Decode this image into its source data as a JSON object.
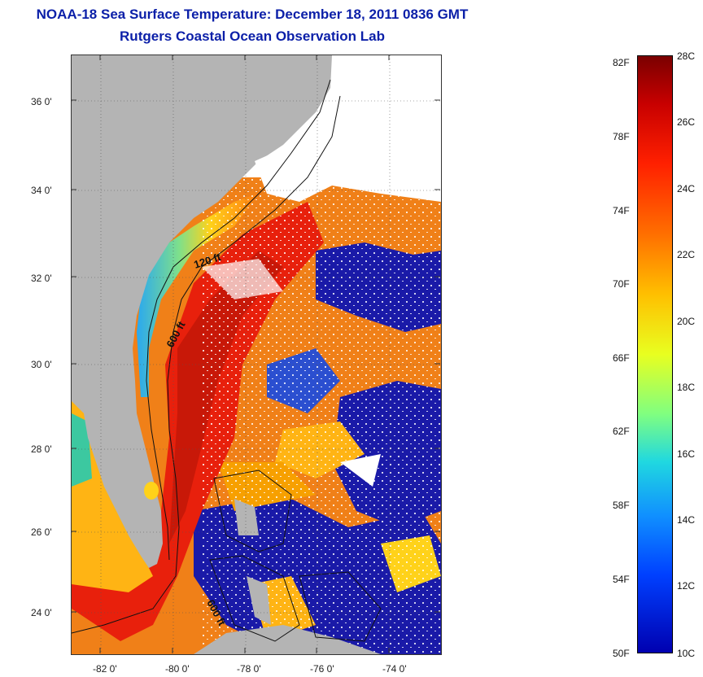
{
  "header": {
    "title": "NOAA-18 Sea Surface Temperature:  December 18, 2011 0836 GMT",
    "subtitle": "Rutgers Coastal Ocean Observation Lab"
  },
  "map": {
    "lat_labels": [
      "36 0'",
      "34 0'",
      "32 0'",
      "30 0'",
      "28 0'",
      "26 0'",
      "24 0'"
    ],
    "lon_labels": [
      "-82 0'",
      "-80 0'",
      "-78 0'",
      "-76 0'",
      "-74 0'"
    ],
    "isobath_labels": [
      "120 ft",
      "600 ft",
      "600 ft"
    ],
    "colors": {
      "land": "#b4b4b4",
      "no_data": "#ffffff",
      "warm": "#e8200c",
      "cold": "#1a1aa8"
    }
  },
  "colorbar": {
    "fahrenheit_labels": [
      "82F",
      "78F",
      "74F",
      "70F",
      "66F",
      "62F",
      "58F",
      "54F",
      "50F"
    ],
    "celsius_labels": [
      "28C",
      "26C",
      "24C",
      "22C",
      "20C",
      "18C",
      "16C",
      "14C",
      "12C",
      "10C"
    ],
    "range_c": [
      10,
      28
    ],
    "range_f": [
      50,
      82.4
    ]
  }
}
